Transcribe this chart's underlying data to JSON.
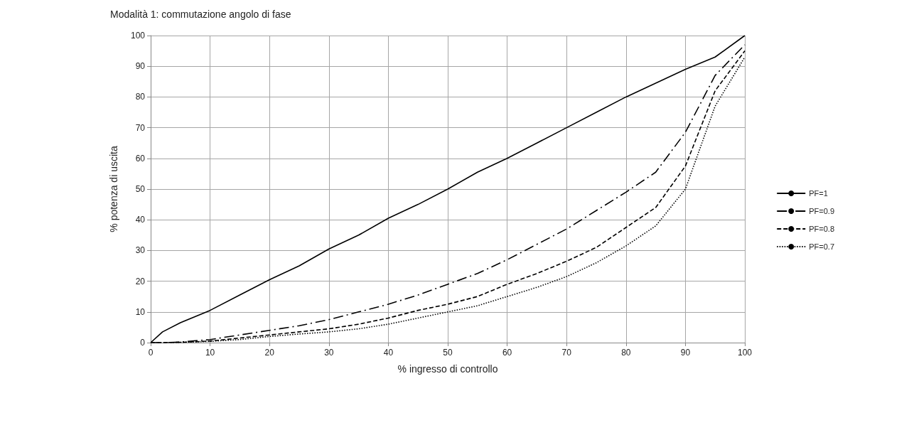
{
  "chart_data": {
    "type": "line",
    "title": "Modalità 1: commutazione angolo di fase",
    "xlabel": "% ingresso di controllo",
    "ylabel": "% potenza di uscita",
    "x": [
      0,
      2,
      5,
      10,
      15,
      20,
      25,
      30,
      35,
      40,
      45,
      50,
      55,
      60,
      65,
      70,
      75,
      80,
      85,
      90,
      95,
      100
    ],
    "series": [
      {
        "name": "PF=1",
        "color": "#000000",
        "line_style": "solid",
        "values": [
          0,
          3.5,
          6.5,
          10.5,
          15.5,
          20.5,
          25,
          30.5,
          35,
          40.5,
          45,
          50,
          55.5,
          60,
          65,
          70,
          75,
          80,
          84.5,
          89,
          93,
          100
        ]
      },
      {
        "name": "PF=0.9",
        "color": "#000000",
        "line_style": "dashdot",
        "values": [
          0,
          0,
          0.2,
          1,
          2.5,
          4,
          5.5,
          7.5,
          10,
          12.5,
          15.5,
          19,
          22.5,
          27,
          32,
          37,
          43,
          49,
          55.5,
          68.5,
          87,
          97
        ]
      },
      {
        "name": "PF=0.8",
        "color": "#000000",
        "line_style": "dashed",
        "values": [
          0,
          0,
          0.1,
          0.5,
          1.5,
          2.5,
          3.5,
          4.5,
          6,
          8,
          10.5,
          12.5,
          15,
          19,
          22.5,
          26.5,
          31,
          37.5,
          44,
          57.5,
          82,
          95
        ]
      },
      {
        "name": "PF=0.7",
        "color": "#000000",
        "line_style": "dotted",
        "values": [
          0,
          0,
          0.1,
          0.4,
          1,
          2,
          2.8,
          3.5,
          4.5,
          6,
          8,
          10,
          12,
          15,
          18,
          21.5,
          26,
          31.5,
          38,
          50,
          77,
          93
        ]
      }
    ],
    "xlim": [
      0,
      100
    ],
    "xticks": [
      0,
      10,
      20,
      30,
      40,
      50,
      60,
      70,
      80,
      90,
      100
    ],
    "ylim": [
      0,
      100
    ],
    "yticks": [
      0,
      10,
      20,
      30,
      40,
      50,
      60,
      70,
      80,
      90,
      100
    ],
    "grid": true,
    "legend": "right",
    "marker": "none"
  }
}
